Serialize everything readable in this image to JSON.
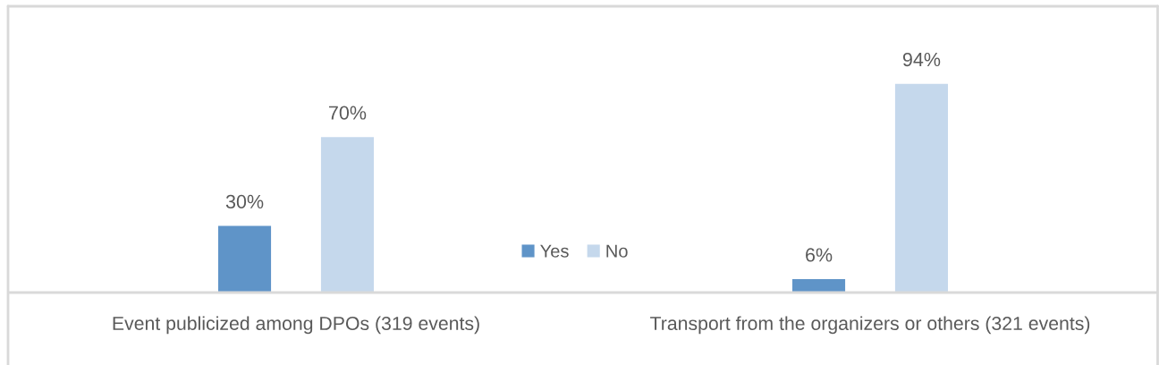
{
  "chart_data": {
    "type": "bar",
    "categories": [
      "Event publicized among DPOs (319 events)",
      "Transport from the organizers or others (321 events)"
    ],
    "series": [
      {
        "name": "Yes",
        "color": "#5f94c8",
        "values": [
          30,
          6
        ],
        "value_labels": [
          "30%",
          "6%"
        ]
      },
      {
        "name": "No",
        "color": "#c5d8ec",
        "values": [
          70,
          94
        ],
        "value_labels": [
          "70%",
          "94%"
        ]
      }
    ],
    "tick_labels": "x",
    "legend": "bottom"
  }
}
